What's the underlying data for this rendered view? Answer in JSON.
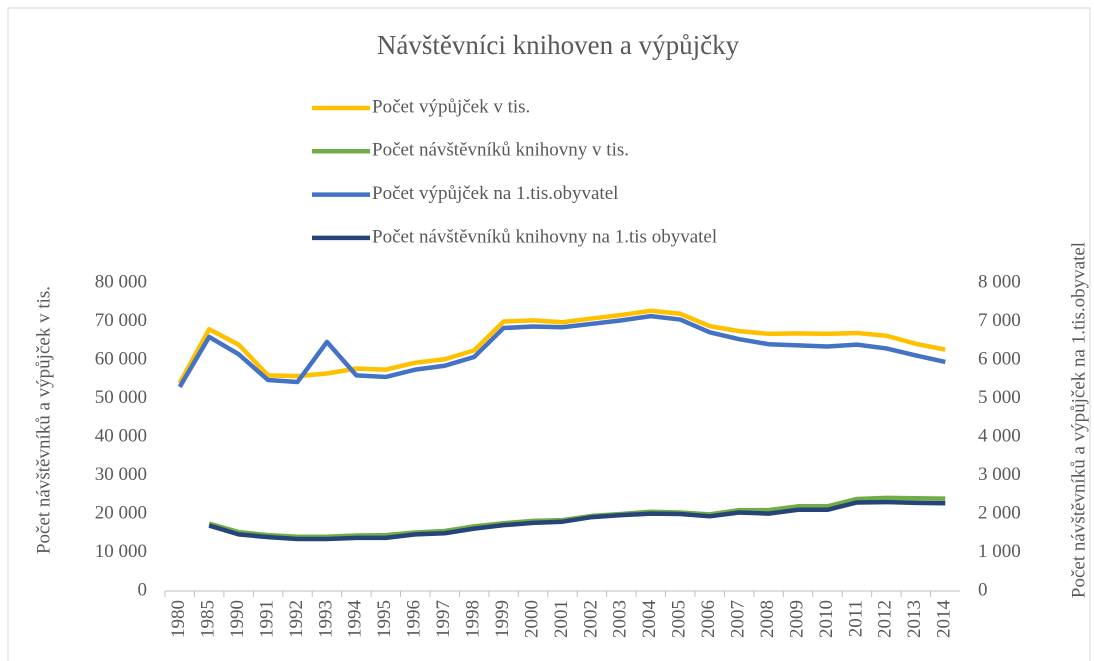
{
  "chart_data": {
    "type": "line",
    "title": "Návštěvníci knihoven a výpůjčky",
    "ylabel": "Počet návštěvníků a výpůjček v tis.",
    "y2label": "Počet návštěvníků a výpůjček na 1.tis.obyvatel",
    "categories": [
      "1980",
      "1985",
      "1990",
      "1991",
      "1992",
      "1993",
      "1994",
      "1995",
      "1996",
      "1997",
      "1998",
      "1999",
      "2000",
      "2001",
      "2002",
      "2003",
      "2004",
      "2005",
      "2006",
      "2007",
      "2008",
      "2009",
      "2010",
      "2011",
      "2012",
      "2013",
      "2014"
    ],
    "series": [
      {
        "name": "Počet výpůjček v tis.",
        "color": "#ffc000",
        "values": [
          54000,
          68000,
          64000,
          56000,
          55800,
          56500,
          57800,
          57500,
          59300,
          60200,
          62500,
          70000,
          70300,
          69800,
          70800,
          71700,
          72800,
          72000,
          68800,
          67500,
          66800,
          66900,
          66800,
          67000,
          66300,
          64200,
          62700
        ]
      },
      {
        "name": "Počet návštěvníků knihovny v tis.",
        "color": "#70ad47",
        "values": [
          null,
          17500,
          15300,
          14500,
          14100,
          14100,
          14400,
          14500,
          15200,
          15600,
          16800,
          17600,
          18200,
          18400,
          19500,
          20000,
          20600,
          20400,
          19900,
          21000,
          21000,
          22000,
          22000,
          23900,
          24200,
          24100,
          24000
        ]
      },
      {
        "name": "Počet výpůjček na 1.tis.obyvatel",
        "color": "#4472c4",
        "axis": "y2",
        "values": [
          5300,
          6600,
          6150,
          5480,
          5430,
          6470,
          5600,
          5560,
          5750,
          5850,
          6080,
          6830,
          6870,
          6850,
          6940,
          7030,
          7140,
          7050,
          6720,
          6540,
          6410,
          6380,
          6350,
          6400,
          6300,
          6120,
          5950
        ]
      },
      {
        "name": "Počet návštěvníků knihovny na 1.tis obyvatel",
        "color": "#264478",
        "axis": "y2",
        "values": [
          null,
          1700,
          1470,
          1400,
          1350,
          1350,
          1380,
          1380,
          1470,
          1500,
          1620,
          1710,
          1770,
          1800,
          1920,
          1970,
          2010,
          2000,
          1940,
          2040,
          2010,
          2110,
          2110,
          2300,
          2310,
          2290,
          2280
        ]
      }
    ],
    "ylim": [
      0,
      80000
    ],
    "yticks": [
      0,
      {
        "value": 10000,
        "label": "10 000"
      },
      {
        "value": 20000,
        "label": "20 000"
      },
      {
        "value": 30000,
        "label": "30 000"
      },
      {
        "value": 40000,
        "label": "40 000"
      },
      {
        "value": 50000,
        "label": "50 000"
      },
      {
        "value": 60000,
        "label": "60 000"
      },
      {
        "value": 70000,
        "label": "70 000"
      },
      {
        "value": 80000,
        "label": "80 000"
      }
    ],
    "y2lim": [
      0,
      8000
    ],
    "y2ticks": [
      0,
      {
        "value": 1000,
        "label": "1 000"
      },
      {
        "value": 2000,
        "label": "2 000"
      },
      {
        "value": 3000,
        "label": "3 000"
      },
      {
        "value": 4000,
        "label": "4 000"
      },
      {
        "value": 5000,
        "label": "5 000"
      },
      {
        "value": 6000,
        "label": "6 000"
      },
      {
        "value": 7000,
        "label": "7 000"
      },
      {
        "value": 8000,
        "label": "8 000"
      }
    ],
    "grid": false
  }
}
